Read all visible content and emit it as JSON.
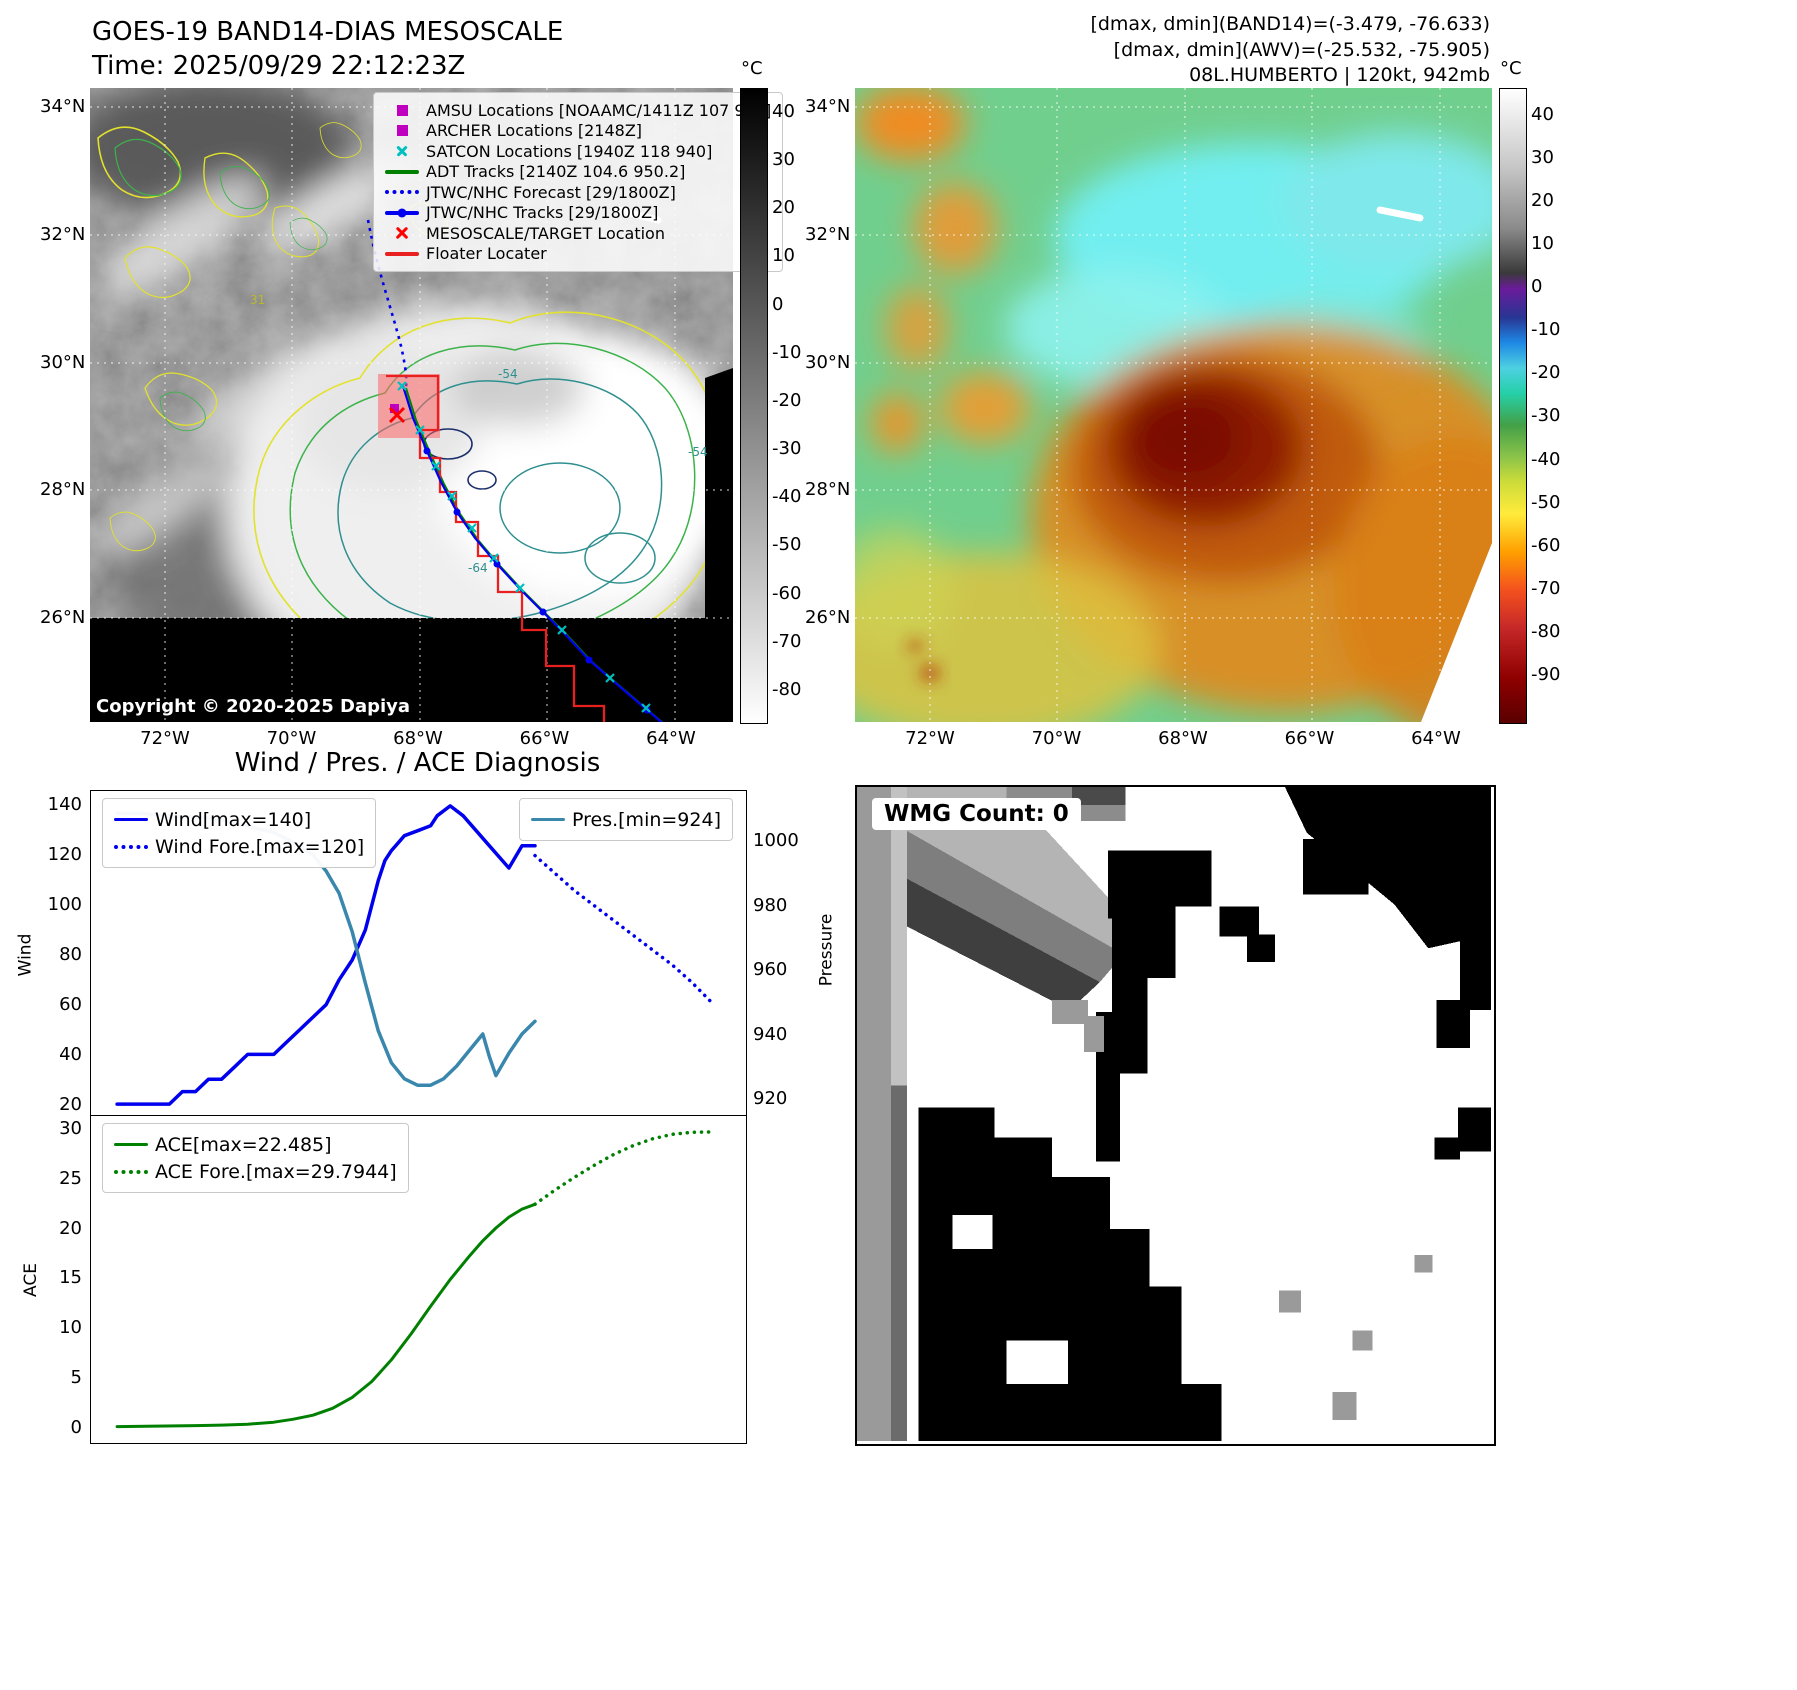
{
  "band14": {
    "title": "GOES-19 BAND14-DIAS MESOSCALE",
    "time": "Time: 2025/09/29 22:12:23Z",
    "copyright": "Copyright © 2020-2025 Dapiya",
    "colorbar": {
      "label": "°C",
      "ticks": [
        "40",
        "30",
        "20",
        "10",
        "0",
        "-10",
        "-20",
        "-30",
        "-40",
        "-50",
        "-60",
        "-70",
        "-80"
      ]
    },
    "lat_ticks": [
      "34°N",
      "32°N",
      "30°N",
      "28°N",
      "26°N"
    ],
    "lon_ticks": [
      "72°W",
      "70°W",
      "68°W",
      "66°W",
      "64°W"
    ],
    "contour_labels": {
      "a": "-54",
      "b": "-54",
      "c": "-64",
      "d": "31"
    },
    "legend": {
      "amsu": "AMSU Locations [NOAAMC/1411Z 107 953]",
      "archer": "ARCHER Locations [2148Z]",
      "satcon": "SATCON Locations [1940Z 118 940]",
      "adt": "ADT Tracks [2140Z 104.6 950.2]",
      "forecast": "JTWC/NHC Forecast [29/1800Z]",
      "tracks": "JTWC/NHC Tracks [29/1800Z]",
      "target": "MESOSCALE/TARGET Location",
      "floater": "Floater Locater"
    }
  },
  "awv": {
    "header1": "[dmax, dmin](BAND14)=(-3.479, -76.633)",
    "header2": "[dmax, dmin](AWV)=(-25.532, -75.905)",
    "header3": "08L.HUMBERTO | 120kt, 942mb",
    "colorbar": {
      "label": "°C",
      "ticks": [
        "40",
        "30",
        "20",
        "10",
        "0",
        "-10",
        "-20",
        "-30",
        "-40",
        "-50",
        "-60",
        "-70",
        "-80",
        "-90"
      ]
    },
    "lat_ticks": [
      "34°N",
      "32°N",
      "30°N",
      "28°N",
      "26°N"
    ],
    "lon_ticks": [
      "72°W",
      "70°W",
      "68°W",
      "66°W",
      "64°W"
    ]
  },
  "diagnosis": {
    "title": "Wind / Pres. / ACE Diagnosis",
    "wind_ticks": [
      "140",
      "120",
      "100",
      "80",
      "60",
      "40",
      "20"
    ],
    "pressure_ticks": [
      "1000",
      "980",
      "960",
      "940",
      "920"
    ],
    "ace_ticks": [
      "30",
      "25",
      "20",
      "15",
      "10",
      "5",
      "0"
    ]
  },
  "wmg": {
    "label": "WMG Count: 0"
  },
  "chart_data": [
    {
      "type": "line",
      "title": "Wind / Pres. / ACE Diagnosis",
      "ylabel": "Wind",
      "y2label": "Pressure",
      "xlim": [
        0,
        100
      ],
      "ylim": [
        16,
        146
      ],
      "y2lim": [
        915,
        1016
      ],
      "grid": false,
      "series": [
        {
          "name": "Wind[max=140]",
          "style": "solid",
          "color": "#0000ee",
          "width": 3.5,
          "axis": "left",
          "x": [
            4,
            7,
            10,
            12,
            14,
            16,
            18,
            20,
            22,
            24,
            26,
            28,
            30,
            32,
            34,
            36,
            38,
            40,
            42,
            44,
            45,
            46,
            47,
            48,
            50,
            52,
            53,
            55,
            57,
            59,
            61,
            63,
            64,
            66,
            68
          ],
          "values": [
            20,
            20,
            20,
            20,
            25,
            25,
            30,
            30,
            35,
            40,
            40,
            40,
            45,
            50,
            55,
            60,
            70,
            78,
            90,
            110,
            118,
            122,
            125,
            128,
            130,
            132,
            136,
            140,
            136,
            130,
            124,
            118,
            115,
            124,
            124
          ]
        },
        {
          "name": "Wind Fore.[max=120]",
          "style": "dotted",
          "color": "#0000ee",
          "width": 3.5,
          "axis": "left",
          "x": [
            68,
            71,
            74,
            77,
            80,
            83,
            86,
            89,
            92,
            95
          ],
          "values": [
            120,
            113,
            106,
            100,
            94,
            88,
            82,
            76,
            69,
            61
          ]
        },
        {
          "name": "Pres.[min=924]",
          "style": "solid",
          "color": "#3a87ad",
          "width": 3.5,
          "axis": "right",
          "x": [
            4,
            8,
            12,
            16,
            20,
            24,
            28,
            31,
            34,
            36,
            38,
            40,
            42,
            44,
            46,
            48,
            50,
            52,
            54,
            56,
            58,
            60,
            61,
            62,
            64,
            66,
            68
          ],
          "values": [
            1009,
            1009,
            1008,
            1008,
            1007,
            1005,
            1003,
            1000,
            996,
            991,
            984,
            972,
            956,
            941,
            931,
            926,
            924,
            924,
            926,
            930,
            935,
            940,
            933,
            927,
            934,
            940,
            944
          ]
        }
      ]
    },
    {
      "type": "line",
      "ylabel": "ACE",
      "xlim": [
        0,
        100
      ],
      "ylim": [
        -1.4,
        31.4
      ],
      "grid": false,
      "series": [
        {
          "name": "ACE[max=22.485]",
          "style": "solid",
          "color": "#008000",
          "width": 3,
          "axis": "left",
          "x": [
            4,
            10,
            16,
            20,
            24,
            28,
            31,
            34,
            37,
            40,
            43,
            46,
            49,
            52,
            55,
            58,
            60,
            62,
            64,
            66,
            68
          ],
          "values": [
            0.05,
            0.1,
            0.15,
            0.2,
            0.3,
            0.5,
            0.8,
            1.2,
            1.9,
            3.0,
            4.6,
            6.8,
            9.4,
            12.2,
            14.9,
            17.3,
            18.8,
            20.1,
            21.2,
            22.0,
            22.485
          ]
        },
        {
          "name": "ACE Fore.[max=29.7944]",
          "style": "dotted",
          "color": "#008000",
          "width": 3.5,
          "axis": "left",
          "x": [
            68,
            71,
            74,
            77,
            80,
            83,
            86,
            89,
            92,
            95
          ],
          "values": [
            22.5,
            23.9,
            25.2,
            26.4,
            27.5,
            28.4,
            29.1,
            29.55,
            29.75,
            29.7944
          ]
        }
      ]
    }
  ]
}
